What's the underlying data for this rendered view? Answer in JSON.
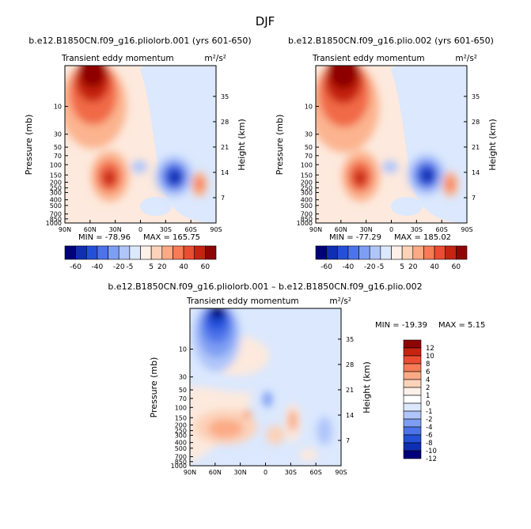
{
  "figure": {
    "season": "DJF"
  },
  "ticks": {
    "lat_labels": [
      "90N",
      "60N",
      "30N",
      "0",
      "30S",
      "60S",
      "90S"
    ],
    "pressure_labels": [
      "10",
      "30",
      "50",
      "70",
      "100",
      "150",
      "200",
      "250",
      "300",
      "400",
      "500",
      "700",
      "850",
      "1000"
    ],
    "height_labels": [
      "35",
      "28",
      "21",
      "14",
      "7"
    ],
    "ylabel_left": "Pressure (mb)",
    "ylabel_right": "Height (km)"
  },
  "panels": [
    {
      "id": "left",
      "case": "b.e12.B1850CN.f09_g16.pliolorb.001 (yrs 601-650)",
      "variable": "Transient eddy momentum",
      "units": "m²/s²",
      "stats": {
        "min_text": "MIN = -78.96",
        "max_text": "MAX = 165.75"
      }
    },
    {
      "id": "right",
      "case": "b.e12.B1850CN.f09_g16.plio.002 (yrs 601-650)",
      "variable": "Transient eddy momentum",
      "units": "m²/s²",
      "stats": {
        "min_text": "MIN = -77.29",
        "max_text": "MAX = 185.02"
      }
    },
    {
      "id": "diff",
      "case": "b.e12.B1850CN.f09_g16.pliolorb.001 – b.e12.B1850CN.f09_g16.plio.002",
      "variable": "Transient eddy momentum",
      "units": "m²/s²",
      "stats": {
        "min_text": "MIN = -19.39",
        "max_text": "MAX =   5.15"
      }
    }
  ],
  "colorbars": {
    "full": {
      "labels": [
        "-60",
        "-40",
        "-20",
        "-5",
        "5",
        "20",
        "40",
        "60"
      ],
      "colors": [
        "#00007a",
        "#0e2fb4",
        "#2450d8",
        "#4d73ea",
        "#7e9ef3",
        "#b0c6fa",
        "#dce8fd",
        "#fdf0e8",
        "#fcd2b9",
        "#fbaa85",
        "#f77b57",
        "#ea4d31",
        "#c52411",
        "#8e0506"
      ]
    },
    "diff": {
      "labels": [
        "12",
        "10",
        "8",
        "6",
        "4",
        "2",
        "1",
        "0",
        "-1",
        "-2",
        "-4",
        "-6",
        "-8",
        "-10",
        "-12"
      ],
      "colors": [
        "#8e0506",
        "#c52411",
        "#ea4d31",
        "#f77b57",
        "#fbaa85",
        "#fcd2b9",
        "#fdf0e8",
        "#ffffff",
        "#dce8fd",
        "#b0c6fa",
        "#7e9ef3",
        "#4d73ea",
        "#2450d8",
        "#0e2fb4",
        "#00007a"
      ]
    }
  },
  "chart_data": [
    {
      "type": "heatmap",
      "title": "b.e12.B1850CN.f09_g16.pliolorb.001 (yrs 601-650)",
      "subtitle": "Transient eddy momentum m²/s²",
      "xlabel": "",
      "ylabel": "Pressure (mb)",
      "y2label": "Height (km)",
      "x_range": [
        90,
        -90
      ],
      "y_range": [
        1000,
        2
      ],
      "features": [
        {
          "lat": 55,
          "p": 5,
          "value": 165.75
        },
        {
          "lat": 30,
          "p": 250,
          "value": 60
        },
        {
          "lat": -45,
          "p": 250,
          "value": -78.96
        },
        {
          "lat": -70,
          "p": 300,
          "value": 30
        }
      ]
    },
    {
      "type": "heatmap",
      "title": "b.e12.B1850CN.f09_g16.plio.002 (yrs 601-650)",
      "subtitle": "Transient eddy momentum m²/s²",
      "xlabel": "",
      "ylabel": "Pressure (mb)",
      "y2label": "Height (km)",
      "x_range": [
        90,
        -90
      ],
      "y_range": [
        1000,
        2
      ],
      "features": [
        {
          "lat": 55,
          "p": 5,
          "value": 185.02
        },
        {
          "lat": 30,
          "p": 250,
          "value": 60
        },
        {
          "lat": -45,
          "p": 250,
          "value": -77.29
        },
        {
          "lat": -70,
          "p": 300,
          "value": 30
        }
      ]
    },
    {
      "type": "heatmap",
      "title": "b.e12.B1850CN.f09_g16.pliolorb.001 – b.e12.B1850CN.f09_g16.plio.002",
      "subtitle": "Transient eddy momentum m²/s²",
      "xlabel": "",
      "ylabel": "Pressure (mb)",
      "y2label": "Height (km)",
      "x_range": [
        90,
        -90
      ],
      "y_range": [
        1000,
        2
      ],
      "features": [
        {
          "lat": 60,
          "p": 5,
          "value": -19.39
        },
        {
          "lat": 40,
          "p": 300,
          "value": 5.15
        },
        {
          "lat": -30,
          "p": 200,
          "value": 3
        },
        {
          "lat": -50,
          "p": 300,
          "value": -4
        }
      ]
    }
  ]
}
